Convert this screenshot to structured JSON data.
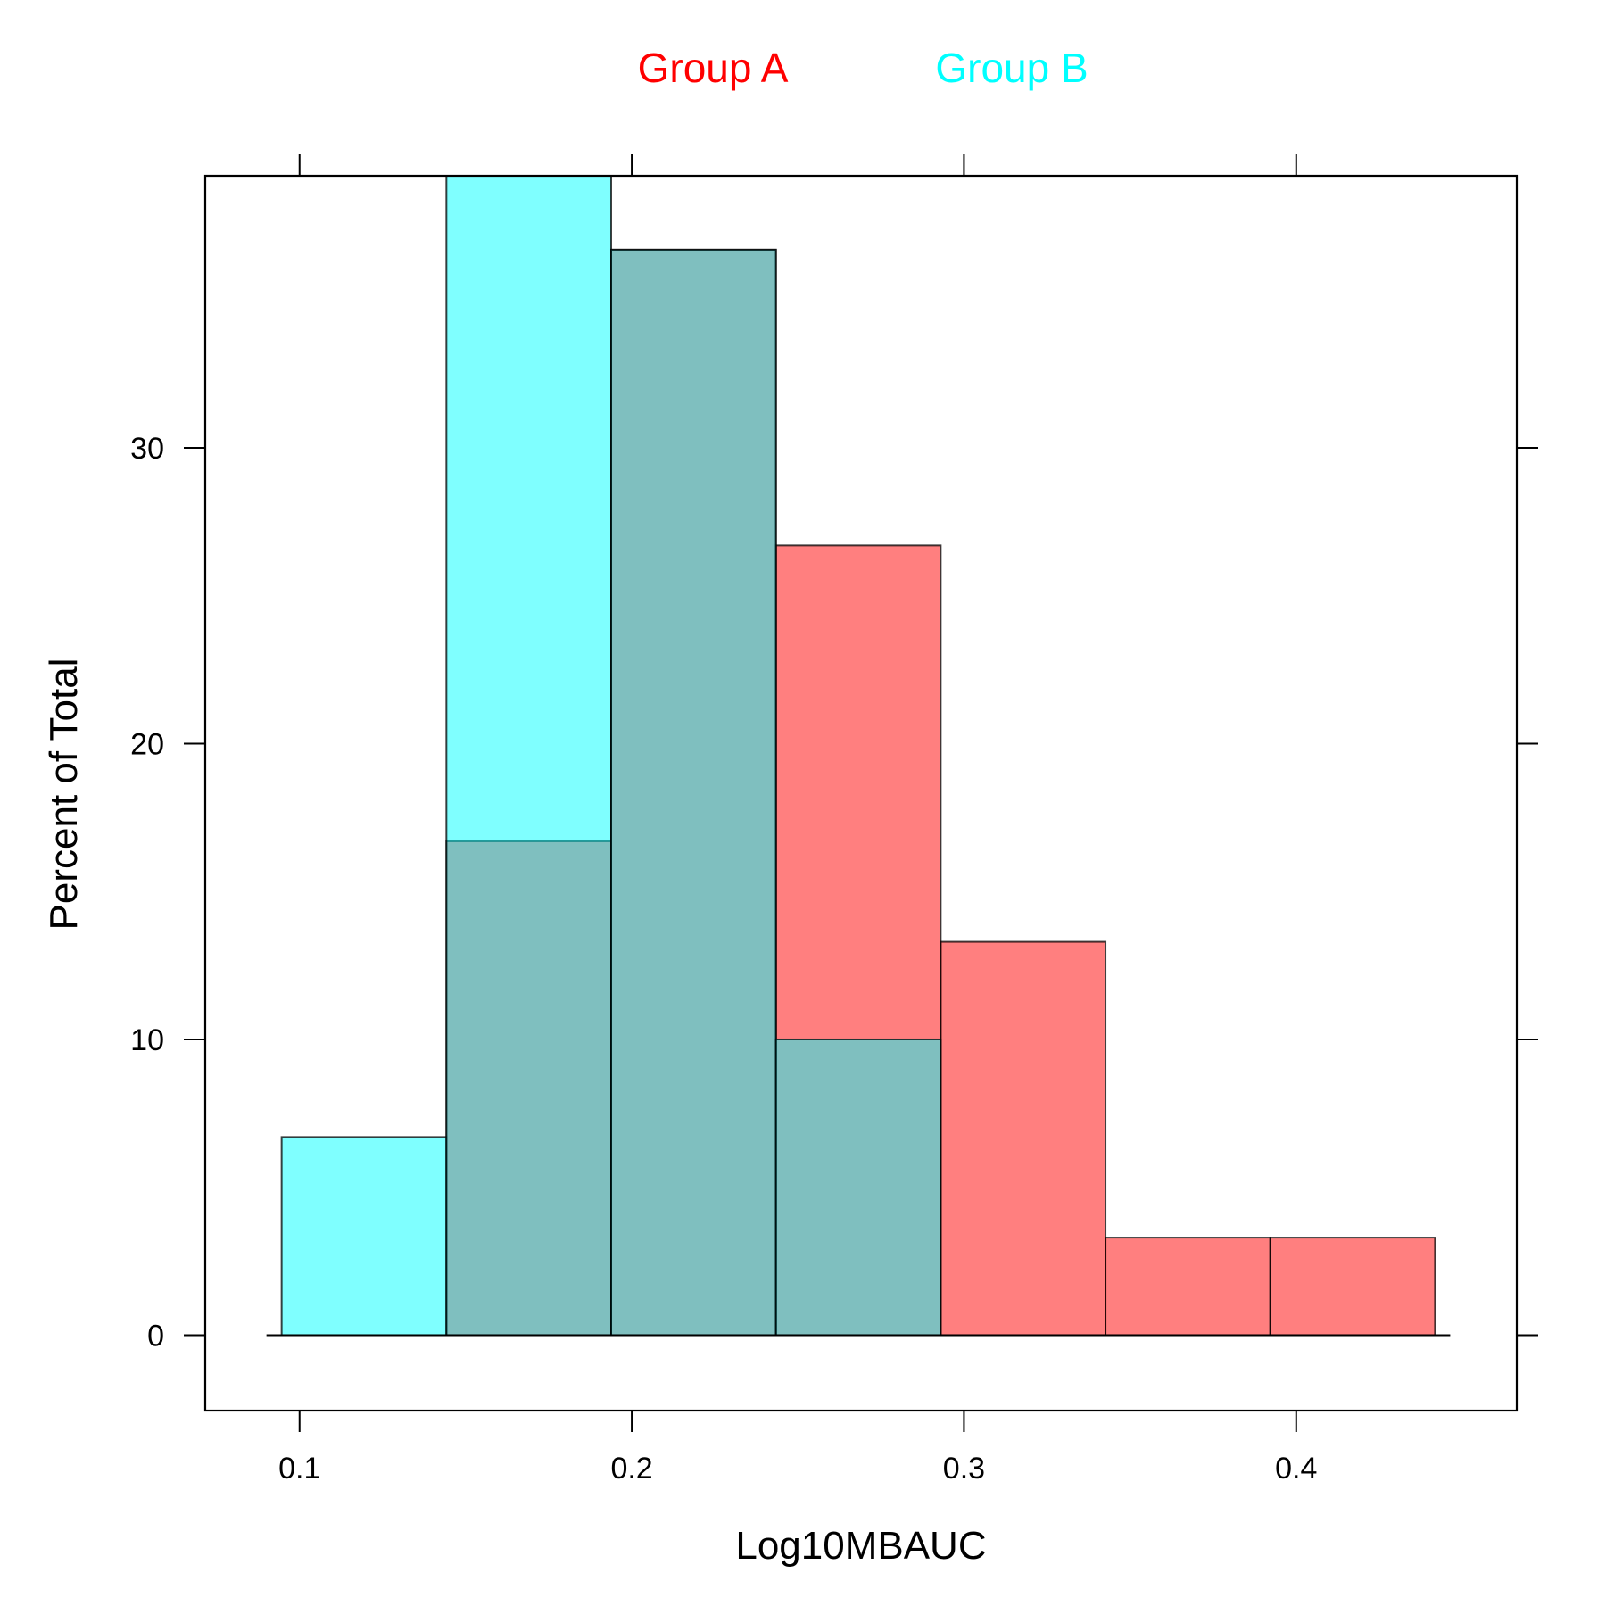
{
  "chart_data": {
    "type": "bar",
    "subtype": "overlaid-histogram",
    "xlabel": "Log10MBAUC",
    "ylabel": "Percent of Total",
    "xlim": [
      0.0716,
      0.4664
    ],
    "ylim": [
      -2.55,
      39.2
    ],
    "x_ticks": [
      0.1,
      0.2,
      0.3,
      0.4
    ],
    "x_tick_labels": [
      "0.1",
      "0.2",
      "0.3",
      "0.4"
    ],
    "y_ticks": [
      0,
      10,
      20,
      30
    ],
    "y_tick_labels": [
      "0",
      "10",
      "20",
      "30"
    ],
    "bin_edges": [
      0.0946,
      0.1442,
      0.1938,
      0.2434,
      0.293,
      0.3426,
      0.3922,
      0.4418
    ],
    "grid": false,
    "legend_position": "top",
    "series": [
      {
        "name": "Group A",
        "color": "#FF0000",
        "fill_color": "#FF8080",
        "values": [
          0,
          16.7,
          36.7,
          26.7,
          13.3,
          3.3,
          3.3
        ]
      },
      {
        "name": "Group B",
        "color": "#00FFFF",
        "fill_color": "#80FFFF",
        "values": [
          6.7,
          40.0,
          36.7,
          10.0,
          0,
          0,
          0
        ]
      }
    ],
    "overlap_color": "#83BEBE"
  }
}
